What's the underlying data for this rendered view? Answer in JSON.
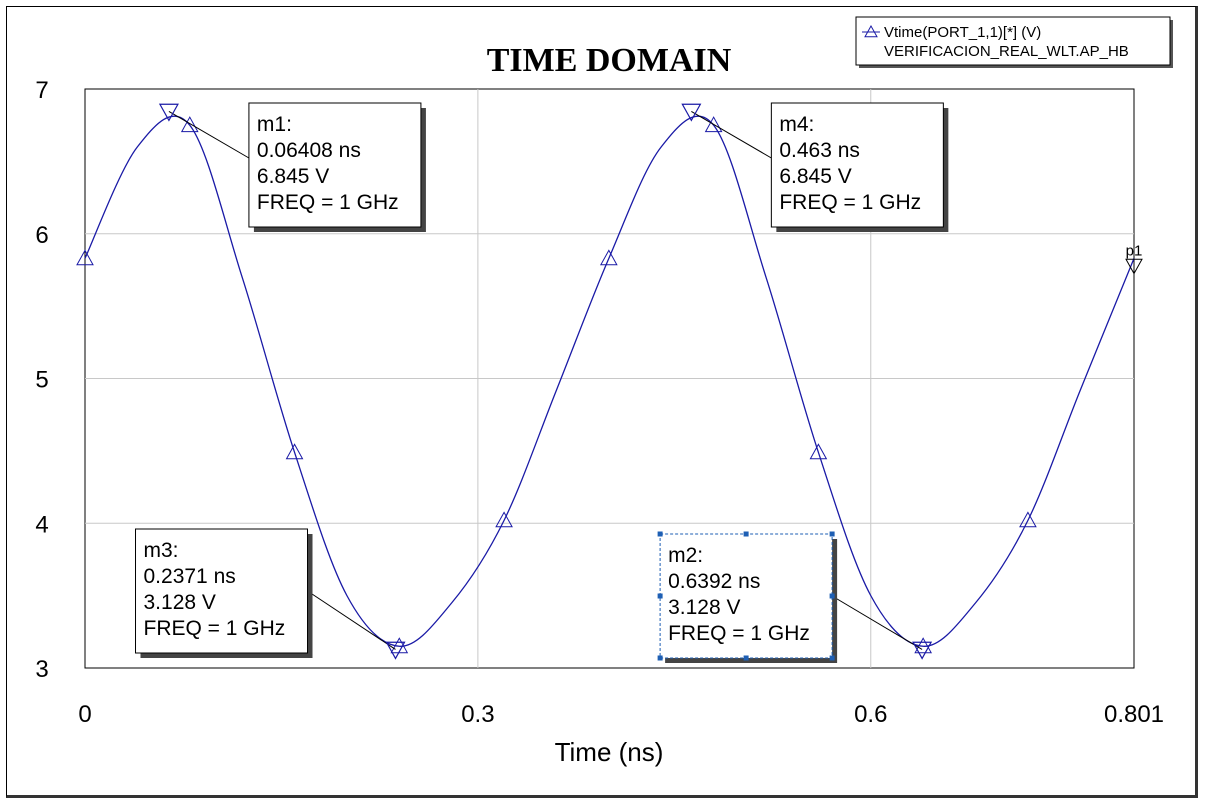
{
  "chart_data": {
    "type": "line",
    "title": "TIME DOMAIN",
    "xlabel": "Time (ns)",
    "ylabel": "",
    "xlim": [
      0,
      0.801
    ],
    "ylim": [
      3,
      7
    ],
    "x_ticks": [
      "0",
      "0.3",
      "0.6",
      "0.801"
    ],
    "x_tick_values": [
      0,
      0.3,
      0.6,
      0.801
    ],
    "y_ticks": [
      "3",
      "4",
      "5",
      "6",
      "7"
    ],
    "y_tick_values": [
      3,
      4,
      5,
      6,
      7
    ],
    "grid": true,
    "legend_position": "top-right",
    "series": [
      {
        "name": "Vtime(PORT_1,1)[*] (V)",
        "subname": "VERIFICACION_REAL_WLT.AP_HB",
        "color": "#1a1aa6",
        "marker": "triangle-up",
        "x": [
          0,
          0.04,
          0.08,
          0.12,
          0.16,
          0.2,
          0.24,
          0.28,
          0.32,
          0.36,
          0.4,
          0.44,
          0.48,
          0.52,
          0.56,
          0.6,
          0.64,
          0.68,
          0.72,
          0.76,
          0.801
        ],
        "y": [
          5.83,
          6.6,
          6.75,
          5.7,
          4.49,
          3.5,
          3.15,
          3.45,
          4.02,
          4.92,
          5.83,
          6.6,
          6.75,
          5.7,
          4.49,
          3.5,
          3.15,
          3.45,
          4.02,
          4.92,
          5.83
        ],
        "marker_x": [
          0,
          0.08,
          0.16,
          0.24,
          0.32,
          0.4,
          0.48,
          0.56,
          0.64,
          0.72
        ]
      }
    ],
    "markers": [
      {
        "label": "m1",
        "name_text": "m1:",
        "time_text": "0.06408 ns",
        "value_text": "6.845 V",
        "freq_text": "FREQ = 1 GHz",
        "x": 0.06408,
        "y": 6.845,
        "box_anchor": "right-top"
      },
      {
        "label": "m4",
        "name_text": "m4:",
        "time_text": "0.463 ns",
        "value_text": "6.845 V",
        "freq_text": "FREQ = 1 GHz",
        "x": 0.463,
        "y": 6.845,
        "box_anchor": "right-top"
      },
      {
        "label": "m3",
        "name_text": "m3:",
        "time_text": "0.2371 ns",
        "value_text": "3.128 V",
        "freq_text": "FREQ = 1 GHz",
        "x": 0.2371,
        "y": 3.128,
        "box_anchor": "left-bottom"
      },
      {
        "label": "m2",
        "name_text": "m2:",
        "time_text": "0.6392 ns",
        "value_text": "3.128 V",
        "freq_text": "FREQ = 1 GHz",
        "x": 0.6392,
        "y": 3.128,
        "box_anchor": "left-bottom",
        "selected": true
      }
    ],
    "end_marker": {
      "label": "p1",
      "x": 0.801,
      "y": 5.78
    }
  }
}
